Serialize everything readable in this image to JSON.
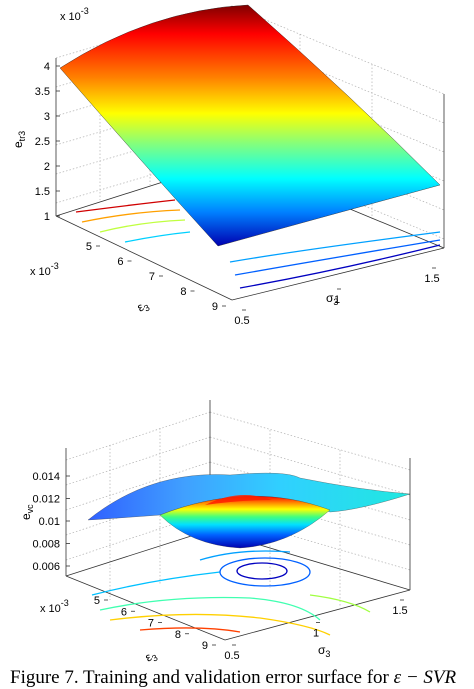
{
  "chart_data": [
    {
      "type": "surface",
      "zlabel": "e_tr3",
      "xlabel": "σ3",
      "ylabel": "ε3",
      "z_exponent": "x 10^-3",
      "y_exponent": "x 10^-3",
      "z_ticks": [
        "1",
        "1.5",
        "2",
        "2.5",
        "3",
        "3.5",
        "4"
      ],
      "x_ticks": [
        "0.5",
        "1",
        "1.5"
      ],
      "y_ticks": [
        "5",
        "6",
        "7",
        "8",
        "9"
      ],
      "zlim": [
        0.001,
        0.0042
      ],
      "xlim": [
        0.5,
        1.5
      ],
      "ylim": [
        0.005,
        0.0098
      ],
      "colormap": "jet",
      "contours_on_floor": true,
      "grid": true
    },
    {
      "type": "surface",
      "zlabel": "e_vc",
      "xlabel": "σ3",
      "ylabel": "ε3",
      "y_exponent": "x 10^-3",
      "z_ticks": [
        "0.006",
        "0.008",
        "0.01",
        "0.012",
        "0.014"
      ],
      "x_ticks": [
        "0.5",
        "1",
        "1.5"
      ],
      "y_ticks": [
        "5",
        "6",
        "7",
        "8",
        "9"
      ],
      "zlim": [
        0.006,
        0.015
      ],
      "xlim": [
        0.5,
        1.5
      ],
      "ylim": [
        0.005,
        0.0098
      ],
      "colormap": "jet",
      "contours_on_floor": true,
      "grid": true
    }
  ],
  "caption": {
    "text": "Figure 7. Training and validation error surface for ",
    "math": "ε − SVR"
  }
}
